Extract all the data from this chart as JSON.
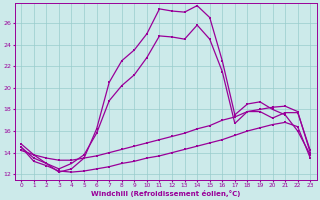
{
  "xlabel": "Windchill (Refroidissement éolien,°C)",
  "background_color": "#cceaea",
  "line_color": "#990099",
  "grid_color": "#99cccc",
  "xlim": [
    -0.5,
    23.5
  ],
  "ylim": [
    11.5,
    27.8
  ],
  "xticks": [
    0,
    1,
    2,
    3,
    4,
    5,
    6,
    7,
    8,
    9,
    10,
    11,
    12,
    13,
    14,
    15,
    16,
    17,
    18,
    19,
    20,
    21,
    22,
    23
  ],
  "yticks": [
    12,
    14,
    16,
    18,
    20,
    22,
    24,
    26
  ],
  "line1_x": [
    0,
    1,
    2,
    3,
    4,
    5,
    6,
    7,
    8,
    9,
    10,
    11,
    12,
    13,
    14,
    15,
    16,
    17,
    18,
    19,
    20,
    21,
    22,
    23
  ],
  "line1_y": [
    14.8,
    13.8,
    13.0,
    12.2,
    12.5,
    13.5,
    16.2,
    20.5,
    22.5,
    23.5,
    25.0,
    27.3,
    27.1,
    27.0,
    27.6,
    26.5,
    22.5,
    17.5,
    18.5,
    18.7,
    18.0,
    17.5,
    16.0,
    13.8
  ],
  "line2_x": [
    0,
    1,
    2,
    3,
    4,
    5,
    6,
    7,
    8,
    9,
    10,
    11,
    12,
    13,
    14,
    15,
    16,
    17,
    18,
    19,
    20,
    21,
    22,
    23
  ],
  "line2_y": [
    14.5,
    13.5,
    13.0,
    12.5,
    13.0,
    13.8,
    15.8,
    18.8,
    20.2,
    21.2,
    22.8,
    24.8,
    24.7,
    24.5,
    25.8,
    24.5,
    21.5,
    16.7,
    17.8,
    17.8,
    17.2,
    17.7,
    17.7,
    14.2
  ],
  "line3_x": [
    0,
    1,
    2,
    3,
    4,
    5,
    6,
    7,
    8,
    9,
    10,
    11,
    12,
    13,
    14,
    15,
    16,
    17,
    18,
    19,
    20,
    21,
    22,
    23
  ],
  "line3_y": [
    14.2,
    13.8,
    13.5,
    13.3,
    13.3,
    13.5,
    13.7,
    14.0,
    14.3,
    14.6,
    14.9,
    15.2,
    15.5,
    15.8,
    16.2,
    16.5,
    17.0,
    17.3,
    17.8,
    18.0,
    18.2,
    18.3,
    17.8,
    14.0
  ],
  "line4_x": [
    0,
    1,
    2,
    3,
    4,
    5,
    6,
    7,
    8,
    9,
    10,
    11,
    12,
    13,
    14,
    15,
    16,
    17,
    18,
    19,
    20,
    21,
    22,
    23
  ],
  "line4_y": [
    14.5,
    13.2,
    12.8,
    12.3,
    12.2,
    12.3,
    12.5,
    12.7,
    13.0,
    13.2,
    13.5,
    13.7,
    14.0,
    14.3,
    14.6,
    14.9,
    15.2,
    15.6,
    16.0,
    16.3,
    16.6,
    16.8,
    16.4,
    13.5
  ]
}
